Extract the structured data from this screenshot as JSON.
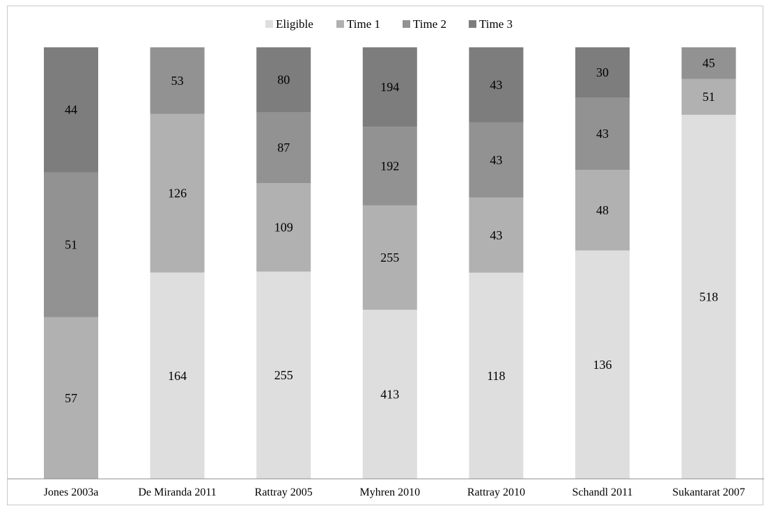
{
  "chart_data": {
    "type": "bar",
    "stacked": true,
    "percent_stacked": true,
    "categories": [
      "Jones 2003a",
      "De Miranda 2011",
      "Rattray 2005",
      "Myhren 2010",
      "Rattray 2010",
      "Schandl 2011",
      "Sukantarat 2007"
    ],
    "series": [
      {
        "name": "Eligible",
        "color": "#dedede",
        "values": [
          null,
          164,
          255,
          413,
          118,
          136,
          518
        ]
      },
      {
        "name": "Time 1",
        "color": "#b1b1b1",
        "values": [
          57,
          126,
          109,
          255,
          43,
          48,
          51
        ]
      },
      {
        "name": "Time 2",
        "color": "#929292",
        "values": [
          51,
          53,
          87,
          192,
          43,
          43,
          45
        ]
      },
      {
        "name": "Time 3",
        "color": "#7d7d7d",
        "values": [
          44,
          null,
          80,
          194,
          43,
          30,
          null
        ]
      }
    ],
    "legend_position": "top-center",
    "grid": false,
    "y_axis_visible": false,
    "data_labels": true
  }
}
